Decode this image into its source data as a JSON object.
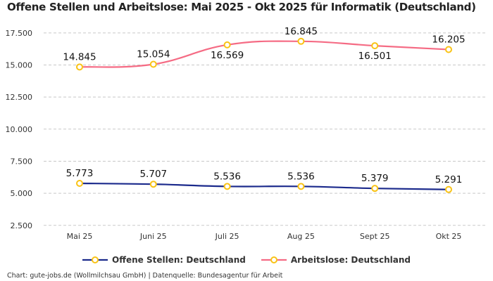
{
  "chart_data": {
    "type": "line",
    "title": "Offene Stellen und Arbeitslose: Mai 2025 - Okt 2025 für Informatik (Deutschland)",
    "categories": [
      "Mai 25",
      "Juni 25",
      "Juli 25",
      "Aug 25",
      "Sept 25",
      "Okt 25"
    ],
    "series": [
      {
        "name": "Offene Stellen: Deutschland",
        "values": [
          5773,
          5707,
          5536,
          5536,
          5379,
          5291
        ],
        "labels": [
          "5.773",
          "5.707",
          "5.536",
          "5.536",
          "5.379",
          "5.291"
        ],
        "color": "#1b2a8c"
      },
      {
        "name": "Arbeitslose: Deutschland",
        "values": [
          14845,
          15054,
          16569,
          16845,
          16501,
          16205
        ],
        "labels": [
          "14.845",
          "15.054",
          "16.569",
          "16.845",
          "16.501",
          "16.205"
        ],
        "color": "#f56b84"
      }
    ],
    "yticks": [
      2500,
      5000,
      7500,
      10000,
      12500,
      15000,
      17500
    ],
    "ytick_labels": [
      "2.500",
      "5.000",
      "7.500",
      "10.000",
      "12.500",
      "15.000",
      "17.500"
    ],
    "ylim": [
      0,
      17500
    ],
    "grid": true,
    "legend": "bottom",
    "marker_color": "#f9c316"
  },
  "footer": "Chart: gute-jobs.de (Wollmilchsau GmbH) | Datenquelle: Bundesagentur für Arbeit"
}
